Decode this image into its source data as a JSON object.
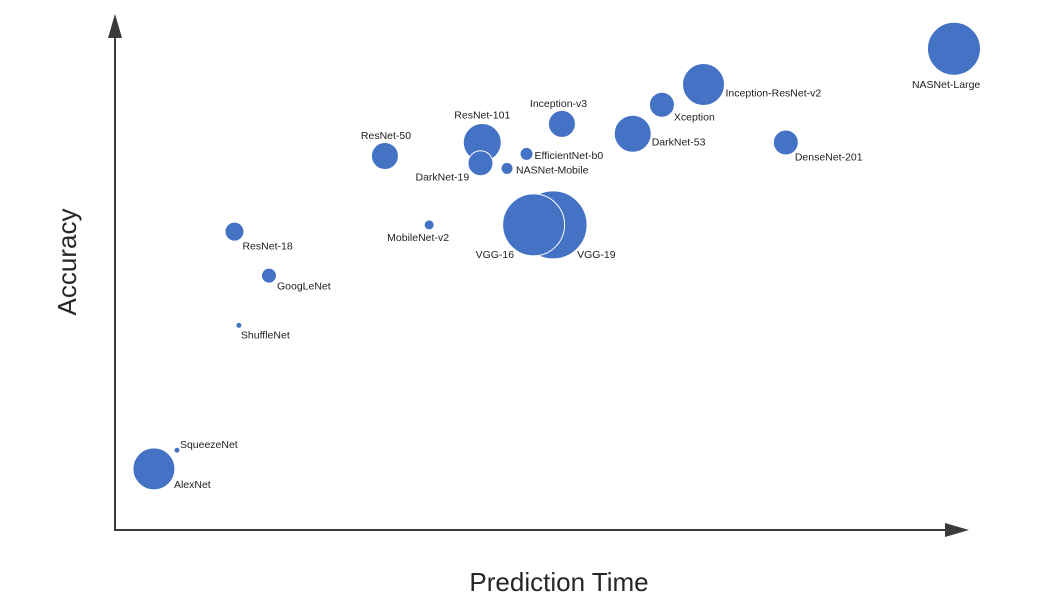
{
  "chart_data": {
    "type": "scatter",
    "title": "",
    "xlabel": "Prediction Time",
    "ylabel": "Accuracy",
    "ticks": false,
    "grid": false,
    "legend": "none",
    "marker_color": "#4472C4",
    "axis_color": "#3a3a3a",
    "xlim": [
      0,
      100
    ],
    "ylim": [
      0,
      100
    ],
    "points": [
      {
        "name": "AlexNet",
        "x": 4.4,
        "y": 11.8,
        "size": 21.0
      },
      {
        "name": "SqueezeNet",
        "x": 7.0,
        "y": 15.4,
        "size": 3.0
      },
      {
        "name": "ShuffleNet",
        "x": 14.0,
        "y": 39.5,
        "size": 3.0
      },
      {
        "name": "GoogLeNet",
        "x": 17.4,
        "y": 49.1,
        "size": 7.5
      },
      {
        "name": "ResNet-18",
        "x": 13.5,
        "y": 57.6,
        "size": 9.5
      },
      {
        "name": "MobileNet-v2",
        "x": 35.5,
        "y": 58.9,
        "size": 5.0
      },
      {
        "name": "ResNet-50",
        "x": 30.5,
        "y": 72.2,
        "size": 13.5
      },
      {
        "name": "ResNet-101",
        "x": 41.5,
        "y": 74.8,
        "size": 19.0
      },
      {
        "name": "DarkNet-19",
        "x": 41.3,
        "y": 70.8,
        "size": 12.5
      },
      {
        "name": "EfficientNet-b0",
        "x": 46.5,
        "y": 72.6,
        "size": 6.5
      },
      {
        "name": "NASNet-Mobile",
        "x": 44.3,
        "y": 69.8,
        "size": 6.0
      },
      {
        "name": "Inception-v3",
        "x": 50.5,
        "y": 78.4,
        "size": 13.5
      },
      {
        "name": "VGG-16",
        "x": 47.3,
        "y": 58.9,
        "size": 31.0
      },
      {
        "name": "VGG-19",
        "x": 49.5,
        "y": 58.9,
        "size": 34.0
      },
      {
        "name": "DarkNet-53",
        "x": 58.5,
        "y": 76.5,
        "size": 18.5
      },
      {
        "name": "Xception",
        "x": 61.8,
        "y": 82.1,
        "size": 12.5
      },
      {
        "name": "Inception-ResNet-v2",
        "x": 66.5,
        "y": 86.0,
        "size": 21.0
      },
      {
        "name": "DenseNet-201",
        "x": 75.8,
        "y": 74.8,
        "size": 12.5
      },
      {
        "name": "NASNet-Large",
        "x": 94.8,
        "y": 92.9,
        "size": 26.5
      }
    ]
  }
}
